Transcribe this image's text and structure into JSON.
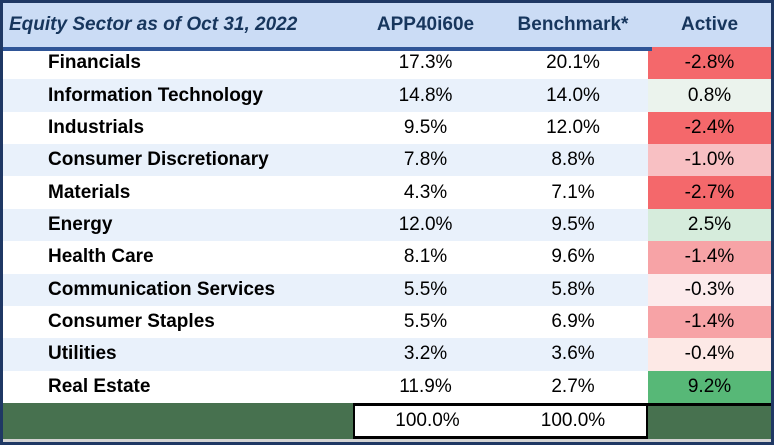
{
  "header": {
    "title": "Equity Sector as of Oct 31, 2022",
    "columns": [
      "APP40i60e",
      "Benchmark*",
      "Active"
    ]
  },
  "rows": [
    {
      "sector": "Financials",
      "fund": "17.3%",
      "benchmark": "20.1%",
      "active": "-2.8%",
      "active_bg": "#f4686b"
    },
    {
      "sector": "Information Technology",
      "fund": "14.8%",
      "benchmark": "14.0%",
      "active": "0.8%",
      "active_bg": "#ebf3ed"
    },
    {
      "sector": "Industrials",
      "fund": "9.5%",
      "benchmark": "12.0%",
      "active": "-2.4%",
      "active_bg": "#f4686b"
    },
    {
      "sector": "Consumer Discretionary",
      "fund": "7.8%",
      "benchmark": "8.8%",
      "active": "-1.0%",
      "active_bg": "#f8c0c3"
    },
    {
      "sector": "Materials",
      "fund": "4.3%",
      "benchmark": "7.1%",
      "active": "-2.7%",
      "active_bg": "#f4686b"
    },
    {
      "sector": "Energy",
      "fund": "12.0%",
      "benchmark": "9.5%",
      "active": "2.5%",
      "active_bg": "#d6ecdc"
    },
    {
      "sector": "Health Care",
      "fund": "8.1%",
      "benchmark": "9.6%",
      "active": "-1.4%",
      "active_bg": "#f7a3a6"
    },
    {
      "sector": "Communication Services",
      "fund": "5.5%",
      "benchmark": "5.8%",
      "active": "-0.3%",
      "active_bg": "#fcebec"
    },
    {
      "sector": "Consumer Staples",
      "fund": "5.5%",
      "benchmark": "6.9%",
      "active": "-1.4%",
      "active_bg": "#f7a3a6"
    },
    {
      "sector": "Utilities",
      "fund": "3.2%",
      "benchmark": "3.6%",
      "active": "-0.4%",
      "active_bg": "#fde9e6"
    },
    {
      "sector": "Real Estate",
      "fund": "11.9%",
      "benchmark": "2.7%",
      "active": "9.2%",
      "active_bg": "#57b877"
    }
  ],
  "totals": {
    "fund": "100.0%",
    "benchmark": "100.0%"
  },
  "colors": {
    "outer_border": "#1f3864",
    "header_bg": "#cbdcf5",
    "header_text": "#17365d",
    "header_underline": "#2f5597",
    "alt_row_bg": "#e9f1fb",
    "negative_strong": "#f4686b",
    "negative_medium": "#f7a3a6",
    "negative_light": "#f8c0c3",
    "negative_faint": "#fcebec",
    "positive_strong": "#57b877",
    "positive_medium": "#d6ecdc",
    "positive_faint": "#ebf3ed",
    "total_row_bg": "#47714f"
  },
  "chart_data": {
    "type": "table",
    "title": "Equity Sector as of Oct 31, 2022",
    "columns": [
      "Equity Sector as of Oct 31, 2022",
      "APP40i60e",
      "Benchmark*",
      "Active"
    ],
    "rows": [
      [
        "Financials",
        17.3,
        20.1,
        -2.8
      ],
      [
        "Information Technology",
        14.8,
        14.0,
        0.8
      ],
      [
        "Industrials",
        9.5,
        12.0,
        -2.4
      ],
      [
        "Consumer Discretionary",
        7.8,
        8.8,
        -1.0
      ],
      [
        "Materials",
        4.3,
        7.1,
        -2.7
      ],
      [
        "Energy",
        12.0,
        9.5,
        2.5
      ],
      [
        "Health Care",
        8.1,
        9.6,
        -1.4
      ],
      [
        "Communication Services",
        5.5,
        5.8,
        -0.3
      ],
      [
        "Consumer Staples",
        5.5,
        6.9,
        -1.4
      ],
      [
        "Utilities",
        3.2,
        3.6,
        -0.4
      ],
      [
        "Real Estate",
        11.9,
        2.7,
        9.2
      ]
    ],
    "totals": [
      "",
      100.0,
      100.0,
      null
    ],
    "notes": "Active column cells are conditionally color-coded: red shades for negative, green shades for positive"
  }
}
